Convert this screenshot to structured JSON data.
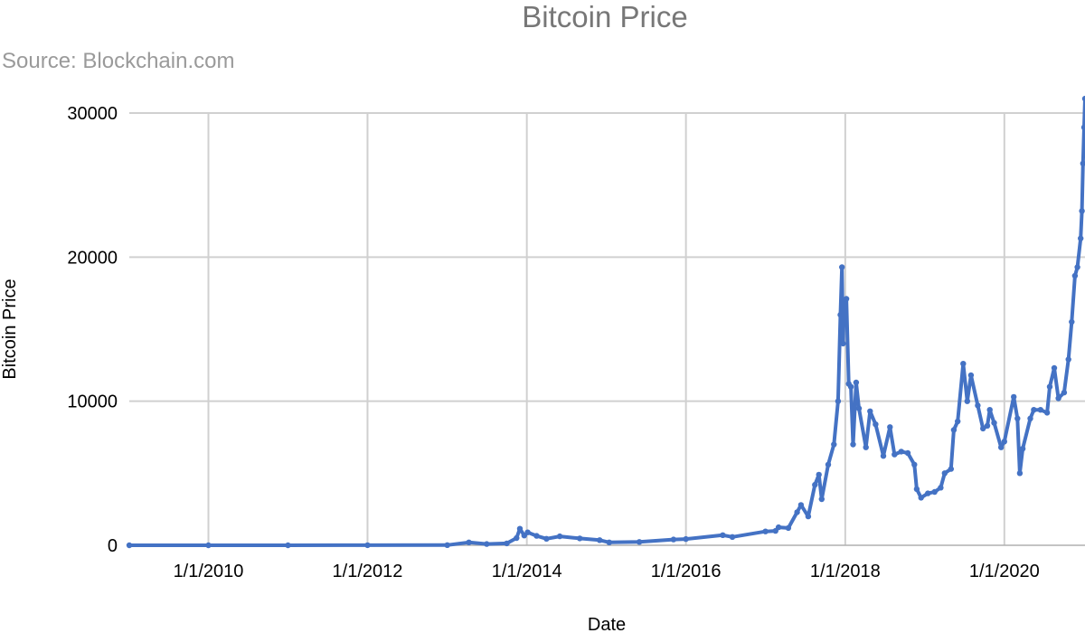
{
  "chart_data": {
    "type": "line",
    "title": "Bitcoin Price",
    "subtitle": "Source: Blockchain.com",
    "xlabel": "Date",
    "ylabel": "Bitcoin Price",
    "xlim": [
      "2009-01-03",
      "2021-01-05"
    ],
    "ylim": [
      0,
      30000
    ],
    "grid": true,
    "colors": {
      "series": "#4472c4",
      "grid": "#d0d0d0",
      "title": "#777777",
      "subtitle": "#9a9a9a"
    },
    "x_ticks": [
      {
        "date": "2010-01-01",
        "label": "1/1/2010"
      },
      {
        "date": "2012-01-01",
        "label": "1/1/2012"
      },
      {
        "date": "2014-01-01",
        "label": "1/1/2014"
      },
      {
        "date": "2016-01-01",
        "label": "1/1/2016"
      },
      {
        "date": "2018-01-01",
        "label": "1/1/2018"
      },
      {
        "date": "2020-01-01",
        "label": "1/1/2020"
      }
    ],
    "y_ticks": [
      {
        "value": 0,
        "label": "0"
      },
      {
        "value": 10000,
        "label": "10000"
      },
      {
        "value": 20000,
        "label": "20000"
      },
      {
        "value": 30000,
        "label": "30000"
      }
    ],
    "series": [
      {
        "x": [
          "2009-01-03",
          "2010-01-01",
          "2011-01-01",
          "2012-01-01",
          "2013-01-01",
          "2013-04-10",
          "2013-07-01",
          "2013-10-01",
          "2013-11-15",
          "2013-11-30",
          "2013-12-20",
          "2014-01-05",
          "2014-02-15",
          "2014-04-01",
          "2014-06-01",
          "2014-09-01",
          "2014-12-01",
          "2015-01-14",
          "2015-06-01",
          "2015-11-05",
          "2016-01-01",
          "2016-06-18",
          "2016-08-01",
          "2016-12-31",
          "2017-02-15",
          "2017-03-01",
          "2017-04-15",
          "2017-05-25",
          "2017-06-12",
          "2017-07-15",
          "2017-08-15",
          "2017-09-02",
          "2017-09-15",
          "2017-10-15",
          "2017-11-10",
          "2017-11-29",
          "2017-12-10",
          "2017-12-17",
          "2017-12-22",
          "2017-12-26",
          "2018-01-06",
          "2018-01-17",
          "2018-01-27",
          "2018-02-06",
          "2018-02-20",
          "2018-03-05",
          "2018-04-06",
          "2018-04-25",
          "2018-05-20",
          "2018-06-25",
          "2018-07-25",
          "2018-08-15",
          "2018-09-15",
          "2018-10-15",
          "2018-11-14",
          "2018-11-25",
          "2018-12-15",
          "2019-01-15",
          "2019-02-15",
          "2019-03-15",
          "2019-04-02",
          "2019-05-01",
          "2019-05-14",
          "2019-06-01",
          "2019-06-26",
          "2019-07-15",
          "2019-08-01",
          "2019-09-01",
          "2019-09-25",
          "2019-10-15",
          "2019-10-26",
          "2019-11-15",
          "2019-12-17",
          "2020-01-01",
          "2020-02-13",
          "2020-03-01",
          "2020-03-12",
          "2020-03-25",
          "2020-04-29",
          "2020-05-15",
          "2020-06-15",
          "2020-07-15",
          "2020-07-27",
          "2020-08-17",
          "2020-09-05",
          "2020-10-01",
          "2020-10-21",
          "2020-11-05",
          "2020-11-20",
          "2020-12-01",
          "2020-12-16",
          "2020-12-22",
          "2020-12-27",
          "2021-01-01",
          "2021-01-05"
        ],
        "y": [
          0,
          0,
          0,
          5,
          13,
          200,
          90,
          130,
          500,
          1150,
          680,
          900,
          650,
          450,
          620,
          480,
          360,
          200,
          230,
          400,
          430,
          700,
          580,
          960,
          1000,
          1250,
          1200,
          2300,
          2800,
          2000,
          4200,
          4900,
          3200,
          5600,
          7000,
          10000,
          16000,
          19300,
          14000,
          16200,
          17100,
          11200,
          11000,
          7000,
          11300,
          9500,
          6800,
          9300,
          8400,
          6200,
          8200,
          6300,
          6500,
          6400,
          5600,
          3900,
          3300,
          3600,
          3700,
          4000,
          5000,
          5300,
          8000,
          8600,
          12600,
          10000,
          11800,
          9700,
          8100,
          8300,
          9400,
          8500,
          6800,
          7200,
          10300,
          8800,
          5000,
          6700,
          8800,
          9400,
          9400,
          9200,
          11000,
          12300,
          10200,
          10600,
          12900,
          15500,
          18700,
          19300,
          21300,
          23200,
          26500,
          29000,
          31000
        ]
      }
    ]
  }
}
